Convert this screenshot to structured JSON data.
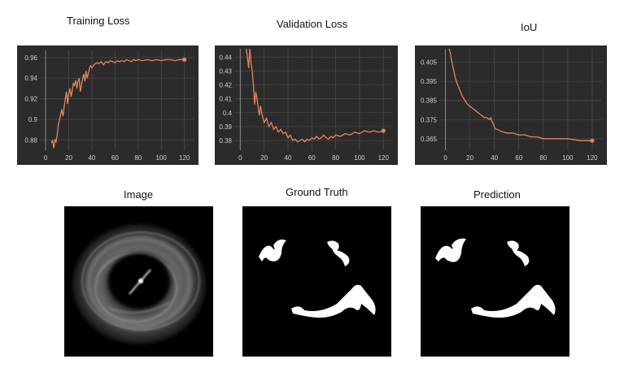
{
  "chart_data": [
    {
      "type": "line",
      "title": "Training Loss",
      "xlabel": "",
      "ylabel": "",
      "xticks": [
        0,
        20,
        40,
        60,
        80,
        100,
        120
      ],
      "yticks": [
        0.88,
        0.9,
        0.92,
        0.94,
        0.96
      ],
      "xlim": [
        -5,
        128
      ],
      "ylim": [
        0.87,
        0.967
      ],
      "grid": true,
      "line_color": "#e8845a",
      "background": "#2b2b2b",
      "series": [
        {
          "x": [
            5,
            6,
            7,
            8,
            9,
            10,
            11,
            12,
            13,
            14,
            15,
            16,
            17,
            18,
            19,
            20,
            21,
            22,
            23,
            24,
            25,
            26,
            27,
            28,
            29,
            30,
            31,
            32,
            33,
            34,
            35,
            36,
            37,
            38,
            39,
            40,
            42,
            44,
            46,
            48,
            50,
            52,
            54,
            56,
            58,
            60,
            62,
            64,
            66,
            68,
            70,
            72,
            74,
            76,
            78,
            80,
            84,
            88,
            92,
            96,
            100,
            104,
            108,
            112,
            116,
            120
          ],
          "y": [
            0.877,
            0.88,
            0.872,
            0.88,
            0.878,
            0.885,
            0.895,
            0.9,
            0.905,
            0.91,
            0.903,
            0.912,
            0.92,
            0.927,
            0.915,
            0.925,
            0.93,
            0.922,
            0.928,
            0.935,
            0.933,
            0.938,
            0.93,
            0.937,
            0.94,
            0.927,
            0.933,
            0.94,
            0.944,
            0.937,
            0.947,
            0.94,
            0.945,
            0.95,
            0.952,
            0.95,
            0.953,
            0.955,
            0.954,
            0.956,
            0.953,
            0.956,
            0.955,
            0.957,
            0.956,
            0.955,
            0.957,
            0.956,
            0.957,
            0.956,
            0.958,
            0.957,
            0.956,
            0.958,
            0.957,
            0.958,
            0.957,
            0.958,
            0.957,
            0.958,
            0.957,
            0.958,
            0.958,
            0.957,
            0.958,
            0.958
          ]
        }
      ]
    },
    {
      "type": "line",
      "title": "Validation Loss",
      "xlabel": "",
      "ylabel": "",
      "xticks": [
        0,
        20,
        40,
        60,
        80,
        100,
        120
      ],
      "yticks": [
        0.38,
        0.39,
        0.4,
        0.41,
        0.42,
        0.43,
        0.44
      ],
      "xlim": [
        -5,
        128
      ],
      "ylim": [
        0.373,
        0.446
      ],
      "grid": true,
      "line_color": "#e8845a",
      "background": "#2b2b2b",
      "series": [
        {
          "x": [
            5,
            6,
            7,
            8,
            9,
            10,
            11,
            12,
            13,
            14,
            15,
            16,
            17,
            18,
            19,
            20,
            22,
            24,
            26,
            28,
            30,
            32,
            34,
            36,
            38,
            40,
            42,
            44,
            46,
            48,
            50,
            52,
            54,
            56,
            58,
            60,
            62,
            64,
            66,
            68,
            70,
            72,
            74,
            76,
            78,
            80,
            84,
            88,
            92,
            96,
            100,
            104,
            108,
            112,
            116,
            120
          ],
          "y": [
            0.446,
            0.44,
            0.432,
            0.446,
            0.436,
            0.43,
            0.42,
            0.406,
            0.415,
            0.41,
            0.404,
            0.398,
            0.405,
            0.4,
            0.396,
            0.393,
            0.396,
            0.39,
            0.393,
            0.388,
            0.39,
            0.386,
            0.388,
            0.385,
            0.386,
            0.382,
            0.384,
            0.38,
            0.381,
            0.379,
            0.38,
            0.381,
            0.379,
            0.381,
            0.38,
            0.382,
            0.381,
            0.383,
            0.381,
            0.382,
            0.384,
            0.382,
            0.381,
            0.383,
            0.382,
            0.384,
            0.383,
            0.385,
            0.384,
            0.386,
            0.385,
            0.387,
            0.386,
            0.387,
            0.386,
            0.387
          ]
        }
      ]
    },
    {
      "type": "line",
      "title": "IoU",
      "xlabel": "",
      "ylabel": "",
      "xticks": [
        0,
        20,
        40,
        60,
        80,
        100,
        120
      ],
      "yticks": [
        0.365,
        0.375,
        0.385,
        0.395,
        0.405
      ],
      "xlim": [
        -5,
        128
      ],
      "ylim": [
        0.359,
        0.412
      ],
      "grid": true,
      "line_color": "#e8845a",
      "background": "#2b2b2b",
      "series": [
        {
          "x": [
            3,
            4,
            5,
            6,
            7,
            8,
            10,
            12,
            14,
            16,
            18,
            20,
            22,
            24,
            26,
            28,
            30,
            32,
            34,
            36,
            37,
            38,
            39,
            40,
            41,
            42,
            45,
            50,
            55,
            60,
            65,
            70,
            75,
            80,
            90,
            100,
            110,
            120
          ],
          "y": [
            0.412,
            0.41,
            0.406,
            0.403,
            0.4,
            0.397,
            0.393,
            0.39,
            0.387,
            0.385,
            0.383,
            0.382,
            0.381,
            0.38,
            0.379,
            0.378,
            0.377,
            0.376,
            0.376,
            0.375,
            0.376,
            0.374,
            0.373,
            0.371,
            0.37,
            0.37,
            0.369,
            0.368,
            0.368,
            0.367,
            0.367,
            0.366,
            0.366,
            0.365,
            0.365,
            0.365,
            0.364,
            0.364
          ]
        }
      ]
    }
  ],
  "images": [
    {
      "label": "Image",
      "icon": "ultrasound-scan-image"
    },
    {
      "label": "Ground Truth",
      "icon": "ground-truth-mask-image"
    },
    {
      "label": "Prediction",
      "icon": "prediction-mask-image"
    }
  ]
}
